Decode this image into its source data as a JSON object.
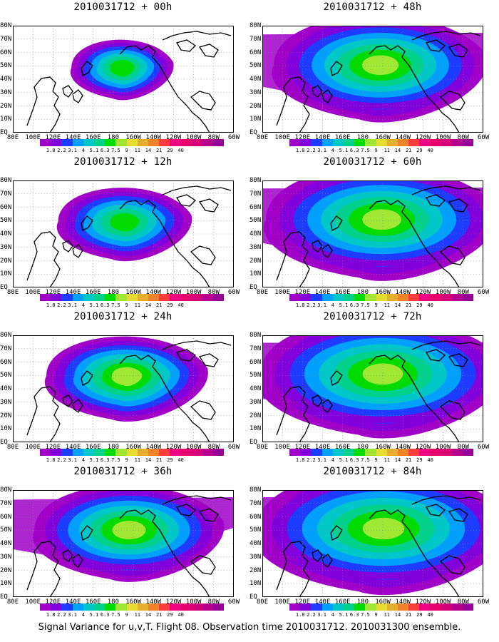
{
  "colorbar": {
    "levels": [
      "1.8",
      "2.2",
      "3.1",
      "4",
      "5.1",
      "6.3",
      "7.5",
      "9",
      "11",
      "14",
      "21",
      "29",
      "40"
    ],
    "colors": [
      "#a000c8",
      "#8200dc",
      "#1e3cff",
      "#00a0ff",
      "#00c8c8",
      "#00d28c",
      "#00dc00",
      "#a0e632",
      "#e6dc32",
      "#e6af2d",
      "#f08228",
      "#fa3c3c",
      "#f00082"
    ]
  },
  "axes": {
    "lat_labels": [
      "80N",
      "70N",
      "60N",
      "50N",
      "40N",
      "30N",
      "20N",
      "10N",
      "EQ"
    ],
    "lon_labels": [
      "80E",
      "100E",
      "120E",
      "140E",
      "160E",
      "180",
      "160W",
      "140W",
      "120W",
      "100W",
      "80W",
      "60W"
    ]
  },
  "panels": [
    {
      "title": "2010031712 + 00h",
      "spread": 0.18,
      "level": 0.55
    },
    {
      "title": "2010031712 + 12h",
      "spread": 0.35,
      "level": 0.55
    },
    {
      "title": "2010031712 + 24h",
      "spread": 0.5,
      "level": 0.6
    },
    {
      "title": "2010031712 + 36h",
      "spread": 0.65,
      "level": 0.65
    },
    {
      "title": "2010031712 + 48h",
      "spread": 0.78,
      "level": 0.65
    },
    {
      "title": "2010031712 + 60h",
      "spread": 0.88,
      "level": 0.7
    },
    {
      "title": "2010031712 + 72h",
      "spread": 0.95,
      "level": 0.7
    },
    {
      "title": "2010031712 + 84h",
      "spread": 1.0,
      "level": 0.72
    }
  ],
  "caption": "Signal Variance for u,v,T. Flight 08. Observation time 2010031712. 2010031300 ensemble."
}
